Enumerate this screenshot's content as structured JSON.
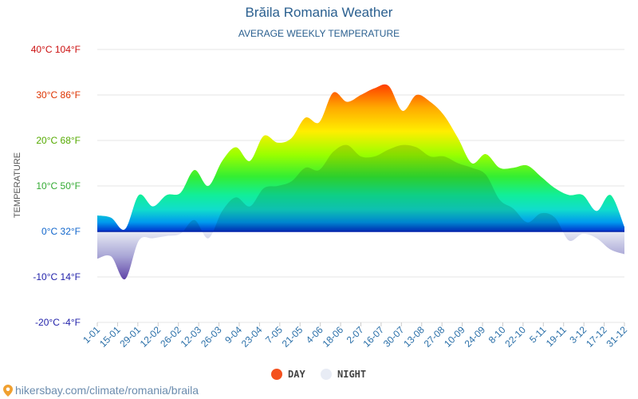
{
  "chart_data": {
    "type": "area",
    "title": "Brăila Romania Weather",
    "subtitle": "AVERAGE WEEKLY TEMPERATURE",
    "ylabel": "TEMPERATURE",
    "ylim": [
      -20,
      40
    ],
    "ytick_values": [
      40,
      30,
      20,
      10,
      0,
      -10,
      -20
    ],
    "ytick_labels": [
      "40°C 104°F",
      "30°C 86°F",
      "20°C 68°F",
      "10°C 50°F",
      "0°C 32°F",
      "-10°C 14°F",
      "-20°C -4°F"
    ],
    "x_labels": [
      "1-01",
      "15-01",
      "29-01",
      "12-02",
      "26-02",
      "12-03",
      "26-03",
      "9-04",
      "23-04",
      "7-05",
      "21-05",
      "4-06",
      "18-06",
      "2-07",
      "16-07",
      "30-07",
      "13-08",
      "27-08",
      "10-09",
      "24-09",
      "8-10",
      "22-10",
      "5-11",
      "19-11",
      "3-12",
      "17-12",
      "31-12"
    ],
    "grid": true,
    "legend_position": "bottom",
    "series": [
      {
        "name": "DAY",
        "values": [
          3.5,
          3,
          0.5,
          8,
          5.5,
          8,
          8.5,
          13.5,
          10,
          15.5,
          18.5,
          15.5,
          21,
          19.5,
          20.5,
          25,
          24,
          30.5,
          28.5,
          30,
          31.5,
          32,
          26.5,
          30,
          28.5,
          25.5,
          20.5,
          15,
          17,
          14,
          14,
          14.5,
          12,
          9.5,
          8,
          8,
          4.5,
          8,
          1
        ]
      },
      {
        "name": "NIGHT",
        "values": [
          -6,
          -5.5,
          -10.5,
          -2,
          -1.5,
          -1,
          -0.5,
          2.5,
          -1.5,
          4.5,
          7.5,
          5.5,
          9.5,
          10,
          11,
          14,
          13.5,
          17.5,
          19,
          16.5,
          16.5,
          18,
          19,
          18.5,
          16.5,
          16.5,
          15,
          14,
          12.5,
          7,
          5,
          2,
          4,
          3,
          -2,
          -0.5,
          -1.5,
          -4,
          -5
        ]
      }
    ]
  },
  "legend": {
    "day_label": "DAY",
    "night_label": "NIGHT",
    "day_color": "#f4511e",
    "night_color": "#e8ecf5"
  },
  "footer": {
    "url": "hikersbay.com/climate/romania/braila",
    "icon": "location-pin-icon"
  }
}
